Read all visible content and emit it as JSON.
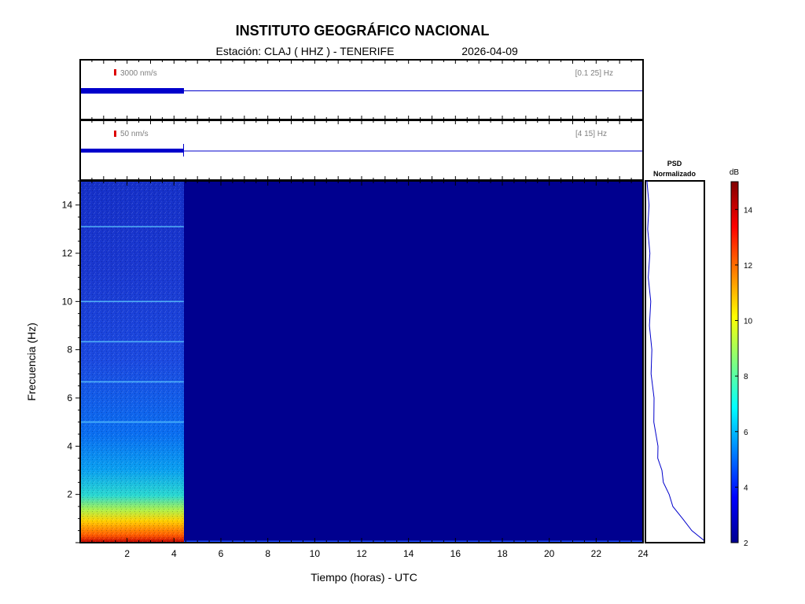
{
  "header": {
    "title": "INSTITUTO GEOGRÁFICO NACIONAL",
    "station": "Estación:  CLAJ ( HHZ ) - TENERIFE",
    "date": "2026-04-09"
  },
  "traces": [
    {
      "scale_label": "3000 nm/s",
      "band_label": "[0.1 25] Hz",
      "data_end_hour": 4.42
    },
    {
      "scale_label": "50 nm/s",
      "band_label": "[4 15] Hz",
      "data_end_hour": 4.42
    }
  ],
  "psd": {
    "title_line1": "PSD",
    "title_line2": "Normalizado"
  },
  "colorbar": {
    "unit": "dB",
    "min": 2,
    "max": 15,
    "ticks": [
      "2",
      "4",
      "6",
      "8",
      "10",
      "12",
      "14"
    ]
  },
  "colors": {
    "accent_trace": "#0000cc",
    "scale_mark": "#dd0000",
    "spectrogram_background": "#00008f"
  },
  "chart_data": {
    "type": "heatmap",
    "title": "INSTITUTO GEOGRÁFICO NACIONAL",
    "xlabel": "Tiempo (horas) - UTC",
    "ylabel": "Frecuencia  (Hz)",
    "xlim": [
      0,
      24
    ],
    "ylim": [
      0,
      15
    ],
    "x_ticks": [
      "2",
      "4",
      "6",
      "8",
      "10",
      "12",
      "14",
      "16",
      "18",
      "20",
      "22",
      "24"
    ],
    "y_ticks": [
      "2",
      "4",
      "6",
      "8",
      "10",
      "12",
      "14"
    ],
    "data_end_hour": 4.42,
    "spectral_lines_hz": [
      5.0,
      6.67,
      8.33,
      10.0,
      13.1
    ],
    "psd_normalized": {
      "freq_hz": [
        0.1,
        0.5,
        1,
        1.5,
        2,
        2.5,
        3,
        3.5,
        4,
        5,
        6,
        7,
        8,
        9,
        10,
        11,
        12,
        13,
        14,
        15
      ],
      "value": [
        1.0,
        0.82,
        0.62,
        0.48,
        0.38,
        0.31,
        0.25,
        0.21,
        0.18,
        0.14,
        0.11,
        0.09,
        0.07,
        0.06,
        0.05,
        0.04,
        0.035,
        0.03,
        0.02,
        0.015
      ]
    }
  }
}
